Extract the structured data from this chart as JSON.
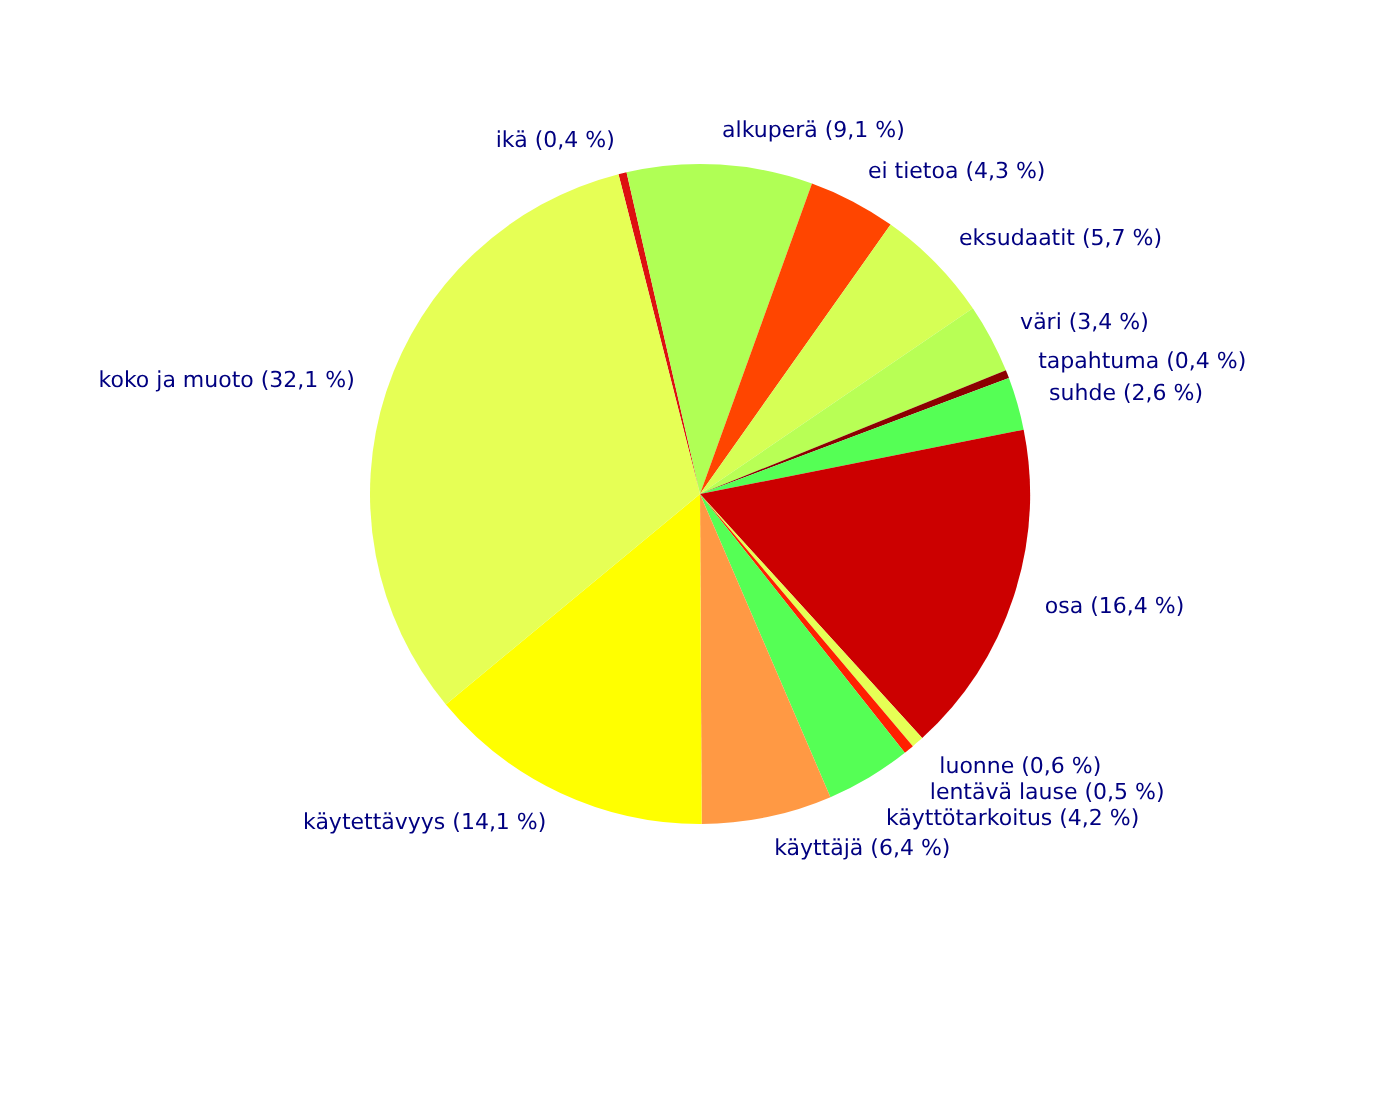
{
  "chart_data": {
    "type": "pie",
    "categories": [
      "ikä (0,4 %)",
      "alkuperä (9,1 %)",
      "ei tietoa (4,3 %)",
      "eksudaatit (5,7 %)",
      "väri (3,4 %)",
      "tapahtuma (0,4 %)",
      "suhde (2,6 %)",
      "osa (16,4 %)",
      "luonne (0,6 %)",
      "lentävä lause (0,5 %)",
      "käyttötarkoitus (4,2 %)",
      "käyttäjä (6,4 %)",
      "käytettävyys (14,1 %)",
      "koko ja muoto (32,1 %)"
    ],
    "values": [
      0.4,
      9.1,
      4.3,
      5.7,
      3.4,
      0.4,
      2.6,
      16.4,
      0.6,
      0.5,
      4.2,
      6.4,
      14.1,
      32.1
    ],
    "colors": [
      "#dd1010",
      "#b0ff55",
      "#ff4500",
      "#d6ff55",
      "#b8ff55",
      "#8b0000",
      "#55ff55",
      "#cc0000",
      "#e6ff55",
      "#ff2000",
      "#55ff55",
      "#ff9944",
      "#ffff00",
      "#e6ff55"
    ]
  }
}
